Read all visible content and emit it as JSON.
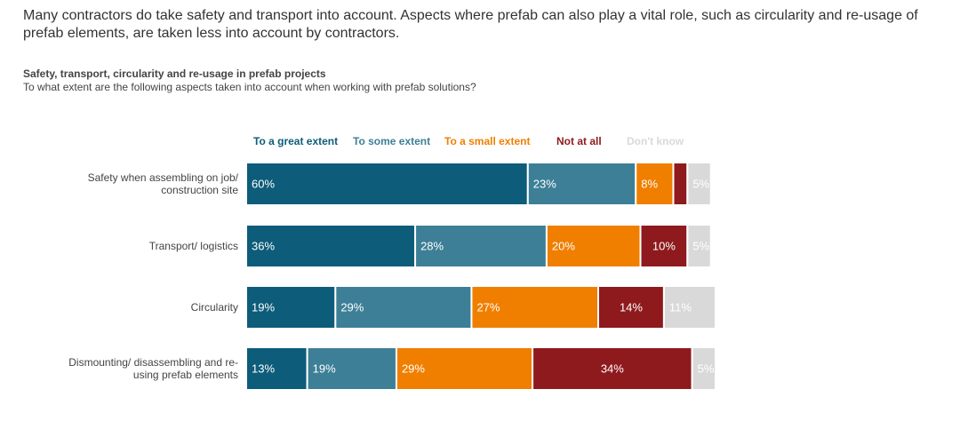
{
  "intro": "Many contractors do take safety and transport into account. Aspects where prefab can also play a vital role, such as circularity and re-usage of prefab elements, are taken less into account by contractors.",
  "chart_data": {
    "type": "stacked-bar-horizontal",
    "title": "Safety, transport, circularity and re-usage in prefab projects",
    "subtitle": "To what extent are the following aspects taken into account when working with prefab solutions?",
    "categories": [
      "Safety when assembling on job/ construction site",
      "Transport/ logistics",
      "Circularity",
      "Dismounting/ disassembling and re-using prefab elements"
    ],
    "xlim": [
      0,
      100
    ],
    "series": [
      {
        "name": "To a great extent",
        "color": "#0d5c7a",
        "values": [
          60,
          36,
          19,
          13
        ],
        "value_labels": [
          "60%",
          "36%",
          "19%",
          "13%"
        ]
      },
      {
        "name": "To some extent",
        "color": "#3d7f96",
        "values": [
          23,
          28,
          29,
          19
        ],
        "value_labels": [
          "23%",
          "28%",
          "29%",
          "19%"
        ]
      },
      {
        "name": "To a small extent",
        "color": "#f07f00",
        "values": [
          8,
          20,
          27,
          29
        ],
        "value_labels": [
          "8%",
          "20%",
          "27%",
          "29%"
        ]
      },
      {
        "name": "Not at all",
        "color": "#8e1a1d",
        "values": [
          3,
          10,
          14,
          34
        ],
        "value_labels": [
          null,
          "10%",
          "14%",
          "34%"
        ]
      },
      {
        "name": "Don't know",
        "color": "#d9d9d9",
        "values": [
          5,
          5,
          11,
          5
        ],
        "value_labels": [
          "5%",
          "5%",
          "11%",
          "5%"
        ]
      }
    ]
  }
}
